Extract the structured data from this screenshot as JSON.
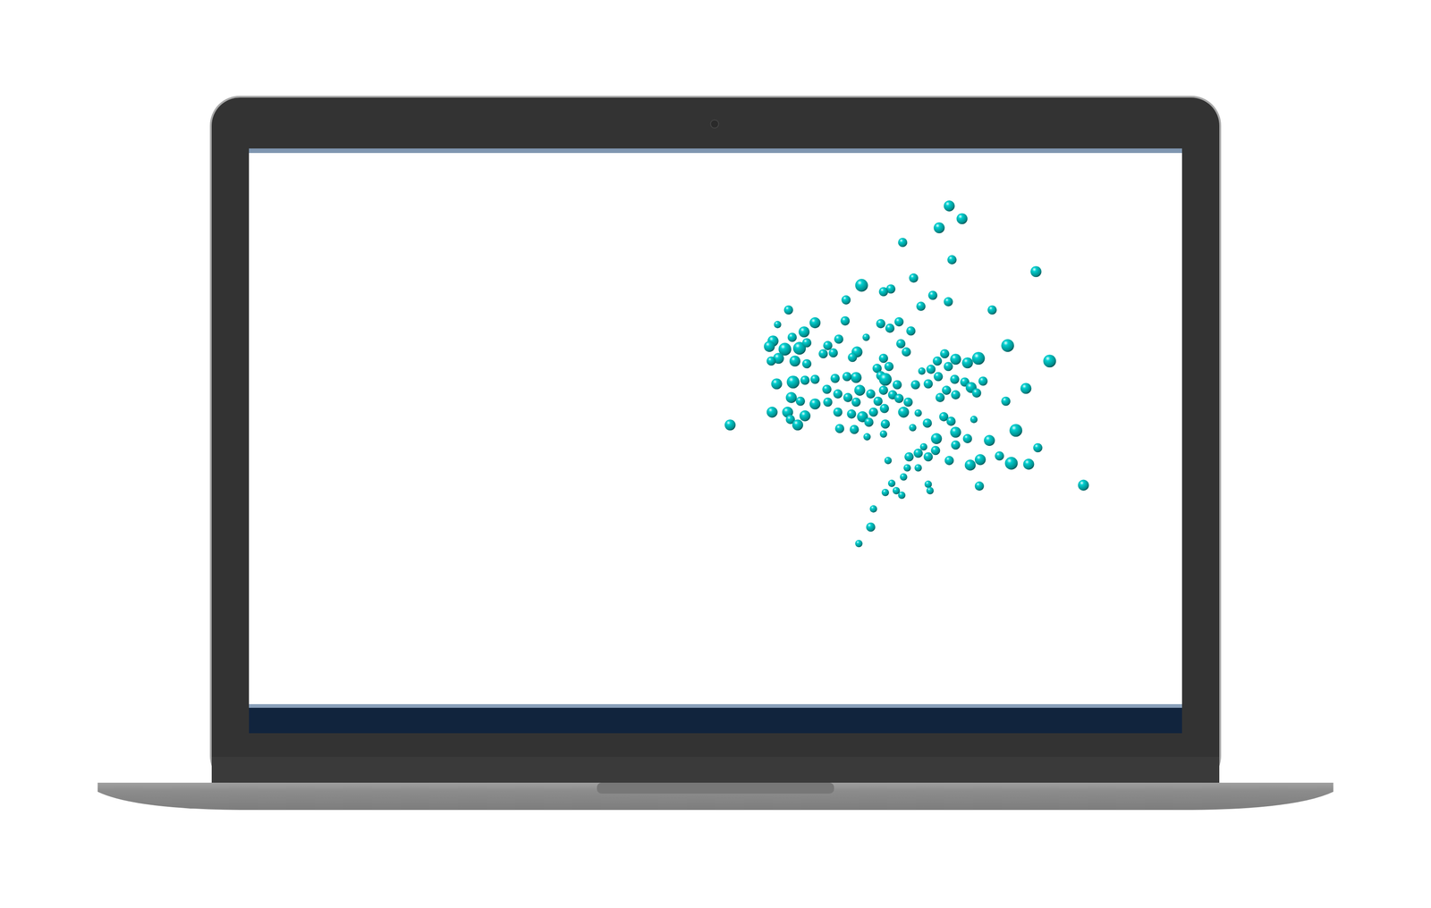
{
  "chart_data": {
    "type": "scatter",
    "color": "#00cfcf",
    "grid": false,
    "tick_labels": false,
    "xlim": [
      0,
      1022
    ],
    "ylim": [
      0,
      604
    ],
    "x": [
      767,
      781,
      756,
      716,
      770,
      862,
      671,
      703,
      695,
      728,
      749,
      766,
      736,
      654,
      591,
      814,
      620,
      653,
      692,
      712,
      702,
      725,
      579,
      608,
      595,
      574,
      570,
      587,
      603,
      611,
      646,
      634,
      676,
      714,
      666,
      640,
      629,
      720,
      831,
      799,
      877,
      580,
      598,
      611,
      572,
      661,
      695,
      762,
      774,
      754,
      787,
      747,
      737,
      766,
      688,
      701,
      620,
      609,
      596,
      578,
      642,
      665,
      655,
      692,
      697,
      755,
      744,
      773,
      784,
      804,
      791,
      851,
      730,
      710,
      633,
      645,
      656,
      669,
      681,
      695,
      705,
      764,
      774,
      797,
      757,
      829,
      594,
      604,
      620,
      634,
      665,
      689,
      712,
      722,
      573,
      590,
      609,
      593,
      645,
      660,
      672,
      684,
      696,
      717,
      733,
      761,
      769,
      794,
      601,
      647,
      663,
      679,
      697,
      727,
      743,
      774,
      840,
      527,
      677,
      695,
      753,
      787,
      811,
      774,
      739,
      752,
      864,
      723,
      733,
      744,
      822,
      801,
      835,
      854,
      790,
      767,
      700,
      721,
      733,
      717,
      704,
      744,
      800,
      914,
      697,
      709,
      715,
      746,
      684,
      681,
      668
    ],
    "values": [
      546,
      532,
      522,
      506,
      487,
      474,
      459,
      455,
      452,
      467,
      448,
      441,
      436,
      443,
      432,
      432,
      418,
      420,
      417,
      419,
      412,
      409,
      416,
      408,
      402,
      398,
      392,
      389,
      390,
      396,
      400,
      393,
      402,
      395,
      386,
      385,
      384,
      386,
      393,
      379,
      376,
      379,
      376,
      373,
      376,
      380,
      379,
      384,
      378,
      376,
      374,
      367,
      365,
      370,
      368,
      370,
      356,
      355,
      353,
      351,
      357,
      358,
      359,
      360,
      356,
      359,
      351,
      356,
      353,
      354,
      347,
      346,
      350,
      350,
      345,
      340,
      336,
      344,
      340,
      344,
      339,
      344,
      339,
      341,
      336,
      332,
      336,
      332,
      329,
      331,
      331,
      332,
      335,
      331,
      320,
      320,
      316,
      312,
      320,
      318,
      315,
      320,
      324,
      320,
      319,
      315,
      310,
      312,
      306,
      302,
      301,
      309,
      307,
      303,
      308,
      298,
      300,
      306,
      293,
      296,
      291,
      291,
      289,
      284,
      282,
      278,
      281,
      271,
      275,
      271,
      272,
      268,
      264,
      263,
      262,
      267,
      267,
      259,
      259,
      249,
      242,
      241,
      239,
      240,
      232,
      234,
      229,
      234,
      214,
      194,
      176
    ],
    "sizes": [
      6,
      6,
      6,
      5,
      5,
      6,
      7,
      5,
      5,
      5,
      5,
      5,
      5,
      5,
      5,
      5,
      6,
      5,
      5,
      5,
      5,
      5,
      4,
      6,
      5,
      6,
      6,
      7,
      7,
      5,
      5,
      5,
      4,
      5,
      6,
      5,
      5,
      5,
      7,
      7,
      7,
      6,
      6,
      5,
      5,
      5,
      5,
      5,
      6,
      5,
      6,
      5,
      4,
      5,
      5,
      5,
      5,
      5,
      7,
      6,
      5,
      6,
      5,
      5,
      7,
      5,
      5,
      5,
      5,
      5,
      6,
      6,
      5,
      5,
      5,
      5,
      5,
      6,
      5,
      5,
      5,
      5,
      5,
      5,
      5,
      5,
      6,
      5,
      6,
      5,
      5,
      5,
      5,
      5,
      6,
      6,
      6,
      5,
      5,
      5,
      6,
      5,
      5,
      6,
      4,
      5,
      5,
      4,
      6,
      5,
      5,
      5,
      5,
      4,
      5,
      6,
      7,
      6,
      4,
      4,
      6,
      5,
      6,
      5,
      4,
      5,
      5,
      5,
      5,
      5,
      5,
      6,
      7,
      6,
      6,
      5,
      4,
      4,
      4,
      4,
      4,
      4,
      5,
      6,
      4,
      4,
      4,
      4,
      4,
      5,
      4
    ]
  }
}
